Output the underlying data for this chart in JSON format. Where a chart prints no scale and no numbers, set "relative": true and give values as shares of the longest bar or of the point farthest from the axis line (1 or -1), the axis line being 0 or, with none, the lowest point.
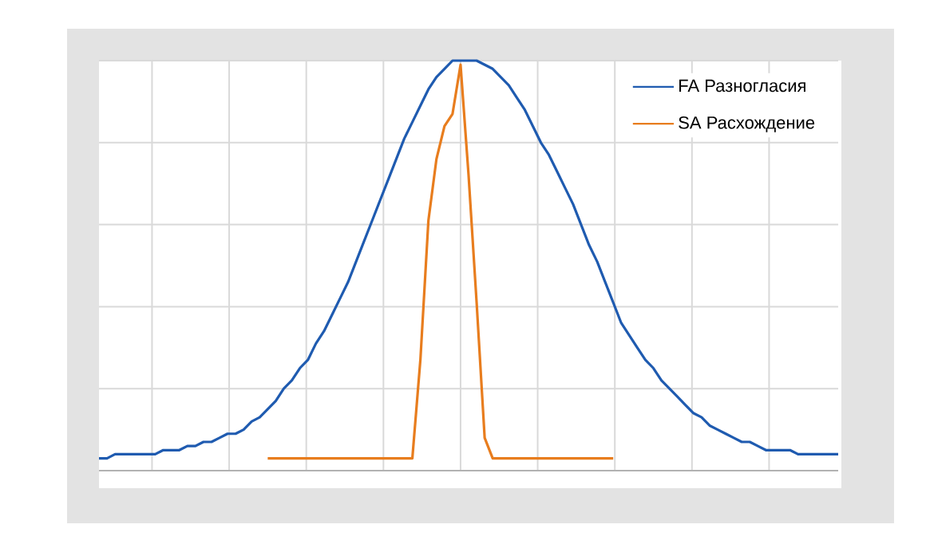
{
  "chart_data": {
    "type": "line",
    "relative": true,
    "grid": true,
    "legend": "top right",
    "categories": [
      null,
      null,
      null,
      null,
      null,
      null,
      null,
      null,
      null,
      null,
      null,
      null,
      null,
      null,
      null,
      null,
      null,
      null,
      null,
      null,
      null,
      null,
      null,
      null,
      null,
      null,
      null,
      null,
      null,
      null,
      null,
      null,
      null,
      null,
      null,
      null,
      null,
      null,
      null,
      null,
      null,
      null,
      null,
      null,
      null,
      null,
      null,
      null,
      null,
      null,
      null,
      null,
      null,
      null,
      null,
      null,
      null,
      null,
      null,
      null,
      null,
      null,
      null,
      null,
      null,
      null,
      null,
      null,
      null,
      null,
      null,
      null,
      null,
      null,
      null,
      null,
      null,
      null,
      null,
      null,
      null,
      null,
      null,
      null,
      null,
      null,
      null,
      null,
      null,
      null,
      null,
      null,
      null
    ],
    "series": [
      {
        "name": "FA Разногласия",
        "color": "#1f5bb0",
        "values": [
          0.03,
          0.03,
          0.04,
          0.04,
          0.04,
          0.04,
          0.04,
          0.04,
          0.05,
          0.05,
          0.05,
          0.06,
          0.06,
          0.07,
          0.07,
          0.08,
          0.09,
          0.09,
          0.1,
          0.12,
          0.13,
          0.15,
          0.17,
          0.2,
          0.22,
          0.25,
          0.27,
          0.31,
          0.34,
          0.38,
          0.42,
          0.46,
          0.51,
          0.56,
          0.61,
          0.66,
          0.71,
          0.76,
          0.81,
          0.85,
          0.89,
          0.93,
          0.96,
          0.98,
          1,
          1,
          1,
          1,
          0.99,
          0.98,
          0.96,
          0.94,
          0.91,
          0.88,
          0.84,
          0.8,
          0.77,
          0.73,
          0.69,
          0.65,
          0.6,
          0.55,
          0.51,
          0.46,
          0.41,
          0.36,
          0.33,
          0.3,
          0.27,
          0.25,
          0.22,
          0.2,
          0.18,
          0.16,
          0.14,
          0.13,
          0.11,
          0.1,
          0.09,
          0.08,
          0.07,
          0.07,
          0.06,
          0.05,
          0.05,
          0.05,
          0.05,
          0.04,
          0.04,
          0.04,
          0.04,
          0.04,
          0.04
        ]
      },
      {
        "name": "SA Расхождение",
        "color": "#e87d1e",
        "values": [
          null,
          null,
          null,
          null,
          null,
          null,
          null,
          null,
          null,
          null,
          null,
          null,
          null,
          null,
          null,
          null,
          null,
          null,
          null,
          null,
          null,
          0.03,
          0.03,
          0.03,
          0.03,
          0.03,
          0.03,
          0.03,
          0.03,
          0.03,
          0.03,
          0.03,
          0.03,
          0.03,
          0.03,
          0.03,
          0.03,
          0.03,
          0.03,
          0.03,
          0.27,
          0.61,
          0.76,
          0.84,
          0.87,
          0.99,
          0.72,
          0.41,
          0.08,
          0.03,
          0.03,
          0.03,
          0.03,
          0.03,
          0.03,
          0.03,
          0.03,
          0.03,
          0.03,
          0.03,
          0.03,
          0.03,
          0.03,
          0.03,
          0.03,
          null,
          null,
          null,
          null,
          null,
          null,
          null,
          null,
          null,
          null,
          null,
          null,
          null,
          null,
          null,
          null,
          null,
          null,
          null,
          null,
          null,
          null,
          null,
          null,
          null,
          null,
          null,
          null
        ]
      }
    ]
  }
}
